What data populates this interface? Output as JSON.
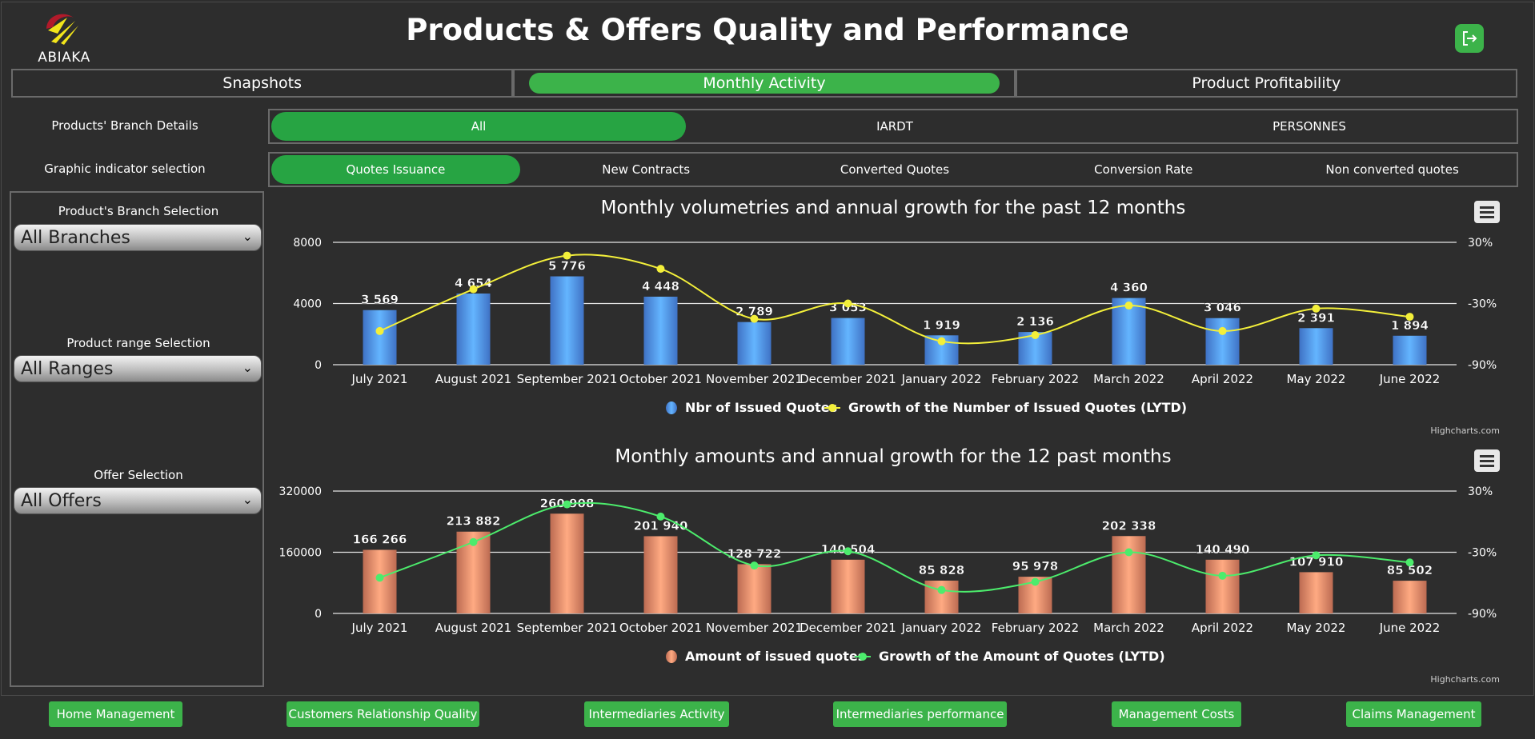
{
  "app": {
    "logo_text": "ABIAKA",
    "title": "Products & Offers Quality and Performance",
    "exit_icon": "logout-icon"
  },
  "main_tabs": [
    {
      "label": "Snapshots",
      "active": false
    },
    {
      "label": "Monthly Activity",
      "active": true
    },
    {
      "label": "Product Profitability",
      "active": false
    }
  ],
  "branch_row": {
    "label": "Products' Branch Details",
    "options": [
      {
        "label": "All",
        "active": true
      },
      {
        "label": "IARDT",
        "active": false
      },
      {
        "label": "PERSONNES",
        "active": false
      }
    ]
  },
  "indicator_row": {
    "label": "Graphic indicator selection",
    "options": [
      {
        "label": "Quotes Issuance",
        "active": true
      },
      {
        "label": "New Contracts",
        "active": false
      },
      {
        "label": "Converted Quotes",
        "active": false
      },
      {
        "label": "Conversion Rate",
        "active": false
      },
      {
        "label": "Non converted quotes",
        "active": false
      }
    ]
  },
  "sidebar": {
    "branch": {
      "label": "Product's Branch Selection",
      "value": "All Branches"
    },
    "range": {
      "label": "Product range Selection",
      "value": "All Ranges"
    },
    "offer": {
      "label": "Offer Selection",
      "value": "All Offers"
    }
  },
  "colors": {
    "accent_green": "#3cb34a",
    "active_pill": "#27a443",
    "bar_blue": "#4a86e8",
    "bar_salmon": "#dd7e60",
    "line_yellow": "#f3ef3a",
    "line_green": "#4cec6c"
  },
  "chart_data": [
    {
      "type": "bar",
      "title": "Monthly volumetries and annual growth for the past 12 months",
      "credits": "Highcharts.com",
      "categories": [
        "July 2021",
        "August 2021",
        "September 2021",
        "October 2021",
        "November 2021",
        "December 2021",
        "January 2022",
        "February 2022",
        "March 2022",
        "April 2022",
        "May 2022",
        "June 2022"
      ],
      "y_left": {
        "min": 0,
        "max": 8000,
        "ticks": [
          "0",
          "4000",
          "8000"
        ]
      },
      "y_right": {
        "min": -90,
        "max": 30,
        "ticks": [
          "-90%",
          "-30%",
          "30%"
        ]
      },
      "series": [
        {
          "name": "Nbr of Issued Quotes",
          "type": "bar",
          "color": "#4a86e8",
          "values": [
            3569,
            4654,
            5776,
            4448,
            2789,
            3053,
            1919,
            2136,
            4360,
            3046,
            2391,
            1894
          ],
          "labels": [
            "3 569",
            "4 654",
            "5 776",
            "4 448",
            "2 789",
            "3 053",
            "1 919",
            "2 136",
            "4 360",
            "3 046",
            "2 391",
            "1 894"
          ]
        },
        {
          "name": "Growth of the Number of Issued Quotes (LYTD)",
          "type": "line",
          "color": "#f3ef3a",
          "values": [
            -57,
            -16,
            17,
            4,
            -45,
            -30,
            -67,
            -61,
            -32,
            -57,
            -35,
            -43
          ]
        }
      ],
      "legend": "bottom-center",
      "grid": true
    },
    {
      "type": "bar",
      "title": "Monthly amounts and annual growth for the 12 past months",
      "credits": "Highcharts.com",
      "categories": [
        "July 2021",
        "August 2021",
        "September 2021",
        "October 2021",
        "November 2021",
        "December 2021",
        "January 2022",
        "February 2022",
        "March 2022",
        "April 2022",
        "May 2022",
        "June 2022"
      ],
      "y_left": {
        "min": 0,
        "max": 320000,
        "ticks": [
          "0",
          "160000",
          "320000"
        ]
      },
      "y_right": {
        "min": -90,
        "max": 30,
        "ticks": [
          "-90%",
          "-30%",
          "30%"
        ]
      },
      "series": [
        {
          "name": "Amount of issued quotes",
          "type": "bar",
          "color": "#dd7e60",
          "values": [
            166266,
            213882,
            260908,
            201940,
            128722,
            140504,
            85828,
            95978,
            202338,
            140490,
            107910,
            85502
          ],
          "labels": [
            "166 266",
            "213 882",
            "260 908",
            "201 940",
            "128 722",
            "140 504",
            "85 828",
            "95 978",
            "202 338",
            "140 490",
            "107 910",
            "85 502"
          ]
        },
        {
          "name": "Growth of the Amount of Quotes (LYTD)",
          "type": "line",
          "color": "#4cec6c",
          "values": [
            -55,
            -20,
            17,
            5,
            -43,
            -29,
            -67,
            -59,
            -30,
            -53,
            -33,
            -40
          ]
        }
      ],
      "legend": "bottom-center",
      "grid": true
    }
  ],
  "bottom_nav": [
    {
      "label": "Home Management"
    },
    {
      "label": "Customers Relationship Quality"
    },
    {
      "label": "Intermediaries Activity"
    },
    {
      "label": "Intermediaries performance"
    },
    {
      "label": "Management Costs"
    },
    {
      "label": "Claims Management"
    }
  ]
}
